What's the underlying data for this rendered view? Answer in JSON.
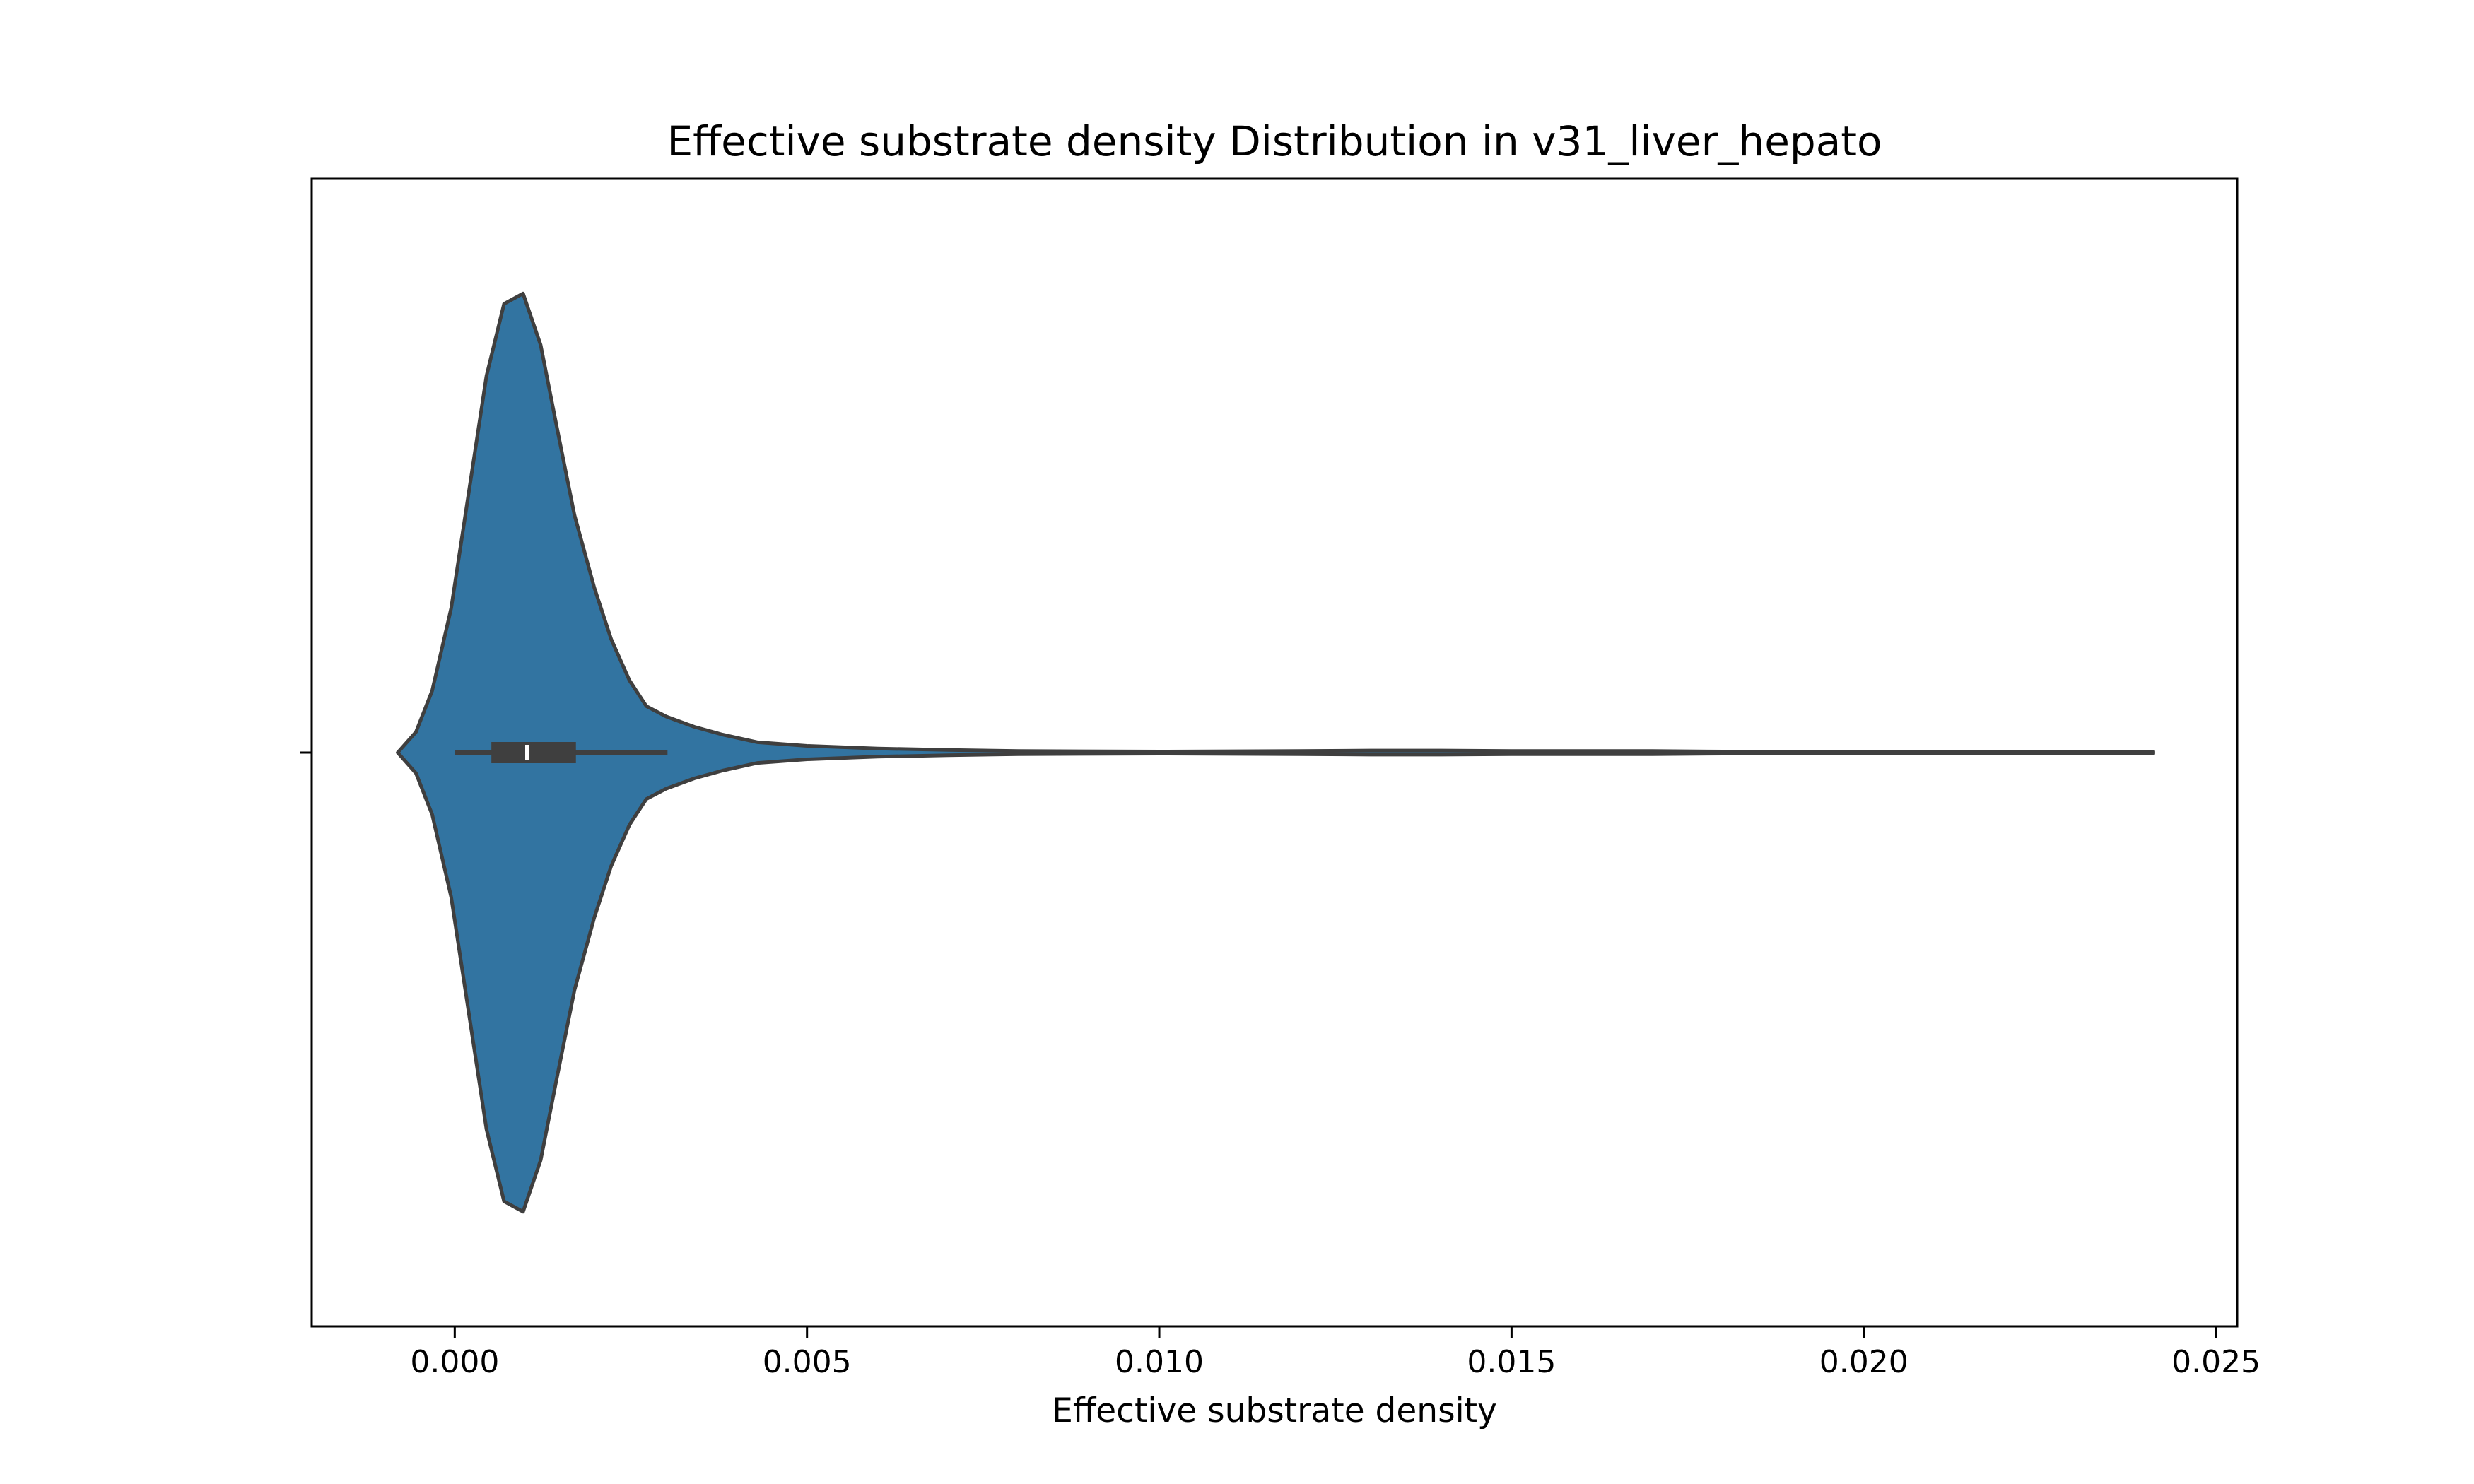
{
  "chart_data": {
    "type": "violin",
    "title": "Effective substrate density Distribution in v31_liver_hepato",
    "xlabel": "Effective substrate density",
    "ylabel": "",
    "orientation": "horizontal",
    "xlim": [
      -0.00203,
      0.0253
    ],
    "x_ticks": [
      0.0,
      0.005,
      0.01,
      0.015,
      0.02,
      0.025
    ],
    "x_tick_labels": [
      "0.000",
      "0.005",
      "0.010",
      "0.015",
      "0.020",
      "0.025"
    ],
    "grid": false,
    "legend": "none",
    "fill_color": "#3274a1",
    "edge_color": "#3f3f3f",
    "box": {
      "whisker_low": 0.0,
      "q1": 0.00052,
      "median": 0.00103,
      "q3": 0.00172,
      "whisker_high": 0.00302
    },
    "density_profile": {
      "x": [
        -0.00081,
        -0.00055,
        -0.00032,
        -5e-05,
        0.00045,
        0.0007,
        0.00097,
        0.00122,
        0.00145,
        0.0017,
        0.00198,
        0.00222,
        0.00248,
        0.00272,
        0.003,
        0.0034,
        0.0038,
        0.0043,
        0.005,
        0.006,
        0.007,
        0.008,
        0.01,
        0.012,
        0.013,
        0.014,
        0.015,
        0.017,
        0.018,
        0.02,
        0.022,
        0.023,
        0.0241
      ],
      "half_width": [
        0.0,
        0.04,
        0.12,
        0.28,
        0.73,
        0.87,
        0.89,
        0.79,
        0.63,
        0.46,
        0.32,
        0.22,
        0.14,
        0.09,
        0.07,
        0.05,
        0.035,
        0.02,
        0.013,
        0.008,
        0.005,
        0.003,
        0.002,
        0.003,
        0.004,
        0.004,
        0.003,
        0.003,
        0.002,
        0.002,
        0.002,
        0.002,
        0.002
      ]
    }
  }
}
